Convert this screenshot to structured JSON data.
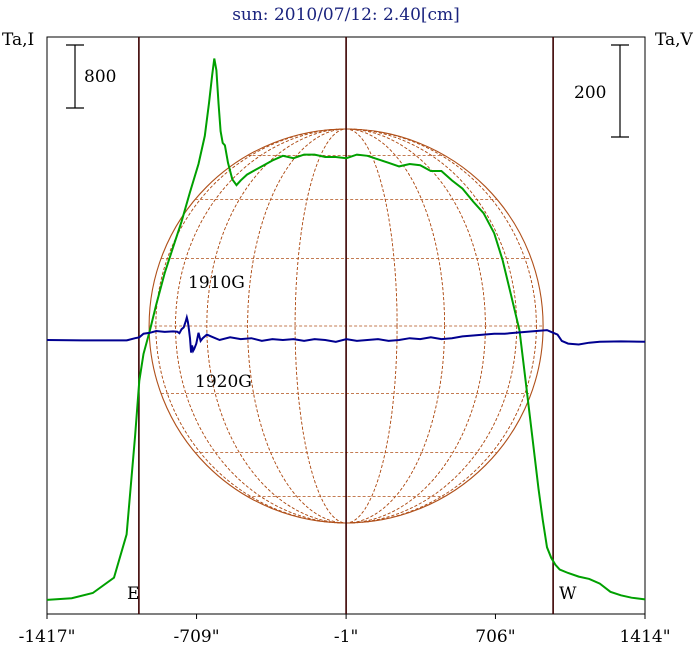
{
  "chart_data": {
    "type": "line",
    "title": "sun: 2010/07/12: 2.40[cm]",
    "y_left_label": "Ta,I",
    "y_right_label": "Ta,V",
    "scale_left": "800",
    "scale_right": "200",
    "x_ticks": [
      "-1417\"",
      "-709\"",
      "-1\"",
      "706\"",
      "1414\""
    ],
    "x_tick_values": [
      -1417,
      -709,
      -1,
      706,
      1414
    ],
    "xlim": [
      -1417,
      1414
    ],
    "limb_labels": {
      "east": "E",
      "west": "W"
    },
    "limb_positions": [
      -982,
      979
    ],
    "center_line": -1,
    "annotations": [
      "1910G",
      "1920G"
    ],
    "colors": {
      "intensity": "#00a000",
      "polarization": "#000090",
      "limb_lines": "#3a0000",
      "grid": "#b0501a"
    },
    "series": [
      {
        "name": "I",
        "x": [
          -1417,
          -1300,
          -1200,
          -1100,
          -1040,
          -1000,
          -980,
          -960,
          -930,
          -900,
          -860,
          -820,
          -780,
          -740,
          -700,
          -670,
          -650,
          -635,
          -625,
          -615,
          -605,
          -595,
          -585,
          -575,
          -560,
          -540,
          -520,
          -500,
          -470,
          -440,
          -400,
          -350,
          -300,
          -250,
          -200,
          -150,
          -100,
          -50,
          0,
          50,
          100,
          150,
          200,
          250,
          300,
          350,
          400,
          450,
          500,
          550,
          600,
          650,
          700,
          740,
          780,
          820,
          850,
          880,
          910,
          930,
          950,
          970,
          990,
          1010,
          1050,
          1100,
          1150,
          1200,
          1250,
          1300,
          1350,
          1414
        ],
        "values": [
          1,
          15,
          60,
          190,
          560,
          1400,
          1870,
          2100,
          2300,
          2520,
          2790,
          3010,
          3230,
          3480,
          3720,
          3960,
          4240,
          4480,
          4620,
          4520,
          4240,
          4000,
          3900,
          3880,
          3730,
          3590,
          3540,
          3580,
          3630,
          3660,
          3700,
          3750,
          3790,
          3770,
          3800,
          3800,
          3780,
          3780,
          3770,
          3800,
          3790,
          3760,
          3730,
          3700,
          3720,
          3710,
          3660,
          3660,
          3580,
          3510,
          3400,
          3300,
          3130,
          2900,
          2600,
          2300,
          1850,
          1400,
          950,
          680,
          450,
          360,
          300,
          260,
          230,
          200,
          180,
          140,
          70,
          40,
          20,
          5
        ]
      },
      {
        "name": "V",
        "x": [
          -1417,
          -1250,
          -1100,
          -1040,
          -1000,
          -980,
          -960,
          -930,
          -900,
          -860,
          -820,
          -800,
          -790,
          -780,
          -770,
          -760,
          -755,
          -750,
          -745,
          -740,
          -735,
          -730,
          -725,
          -720,
          -710,
          -700,
          -690,
          -680,
          -660,
          -640,
          -600,
          -550,
          -500,
          -450,
          -400,
          -350,
          -300,
          -250,
          -200,
          -150,
          -100,
          -50,
          0,
          50,
          100,
          150,
          200,
          250,
          300,
          350,
          400,
          450,
          500,
          550,
          600,
          650,
          700,
          750,
          800,
          850,
          900,
          950,
          970,
          1000,
          1020,
          1050,
          1100,
          1150,
          1200,
          1300,
          1414
        ],
        "values": [
          0,
          -2,
          -2,
          -2,
          10,
          15,
          35,
          40,
          50,
          45,
          48,
          46,
          38,
          60,
          70,
          105,
          125,
          100,
          60,
          10,
          -70,
          -30,
          -60,
          -50,
          -20,
          40,
          -5,
          10,
          30,
          20,
          0,
          15,
          5,
          10,
          -5,
          5,
          0,
          5,
          -5,
          5,
          0,
          -10,
          5,
          -5,
          0,
          5,
          -5,
          0,
          10,
          5,
          15,
          5,
          10,
          20,
          25,
          30,
          35,
          35,
          40,
          45,
          50,
          55,
          45,
          30,
          -5,
          -20,
          -25,
          -15,
          -10,
          -8,
          -10
        ]
      }
    ]
  }
}
